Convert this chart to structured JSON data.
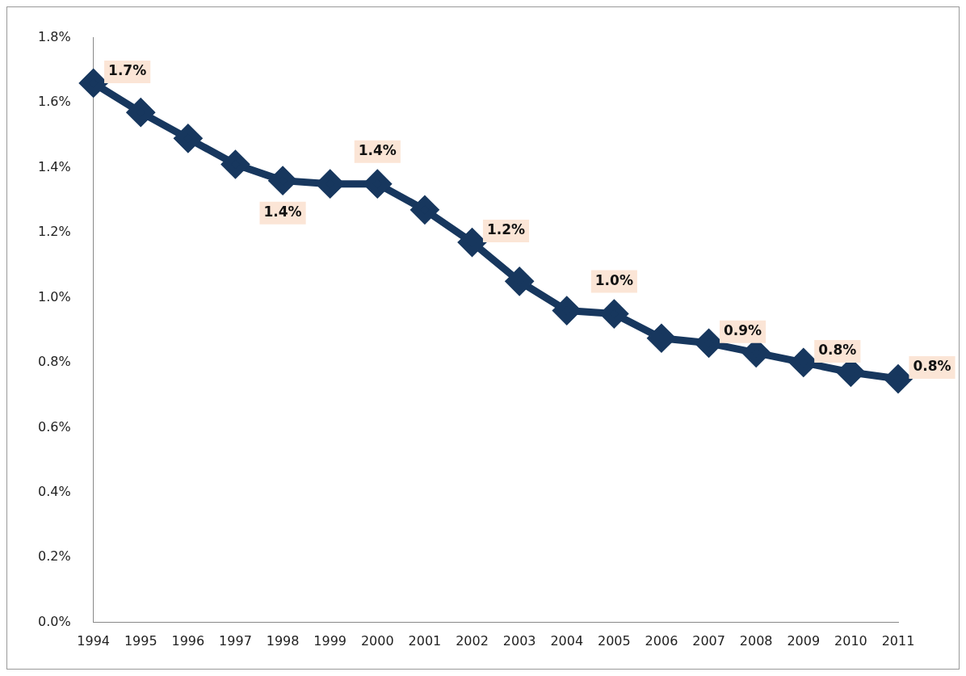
{
  "chart_data": {
    "type": "line",
    "categories": [
      "1994",
      "1995",
      "1996",
      "1997",
      "1998",
      "1999",
      "2000",
      "2001",
      "2002",
      "2003",
      "2004",
      "2005",
      "2006",
      "2007",
      "2008",
      "2009",
      "2010",
      "2011"
    ],
    "series": [
      {
        "color": "#17375e",
        "values": [
          1.66,
          1.57,
          1.49,
          1.41,
          1.36,
          1.35,
          1.35,
          1.27,
          1.17,
          1.05,
          0.96,
          0.95,
          0.875,
          0.86,
          0.83,
          0.8,
          0.77,
          0.75
        ],
        "value_labels": [
          "1.7%",
          null,
          null,
          null,
          "1.4%",
          null,
          "1.4%",
          null,
          "1.2%",
          null,
          null,
          "1.0%",
          null,
          "0.9%",
          null,
          "0.8%",
          null,
          "0.8%"
        ]
      }
    ],
    "ylim": [
      0,
      1.8
    ],
    "yticks": [
      {
        "value": 0,
        "label": "0.0%"
      },
      {
        "value": 0.2,
        "label": "0.2%"
      },
      {
        "value": 0.4,
        "label": "0.4%"
      },
      {
        "value": 0.6,
        "label": "0.6%"
      },
      {
        "value": 0.8,
        "label": "0.8%"
      },
      {
        "value": 1,
        "label": "1.0%"
      },
      {
        "value": 1.2,
        "label": "1.2%"
      },
      {
        "value": 1.4,
        "label": "1.4%"
      },
      {
        "value": 1.6,
        "label": "1.6%"
      },
      {
        "value": 1.8,
        "label": "1.8%"
      }
    ],
    "grid": false,
    "legend": false,
    "marker": "diamond",
    "line_style": "solid"
  }
}
